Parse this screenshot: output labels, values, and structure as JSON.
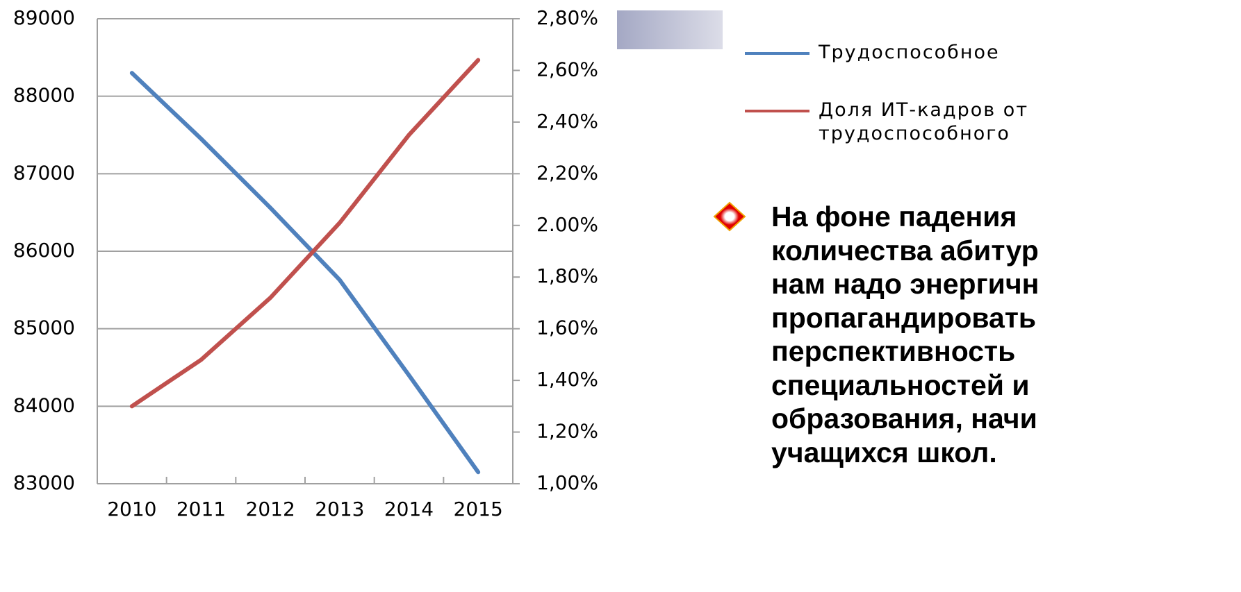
{
  "chart_data": {
    "type": "line",
    "categories": [
      "2010",
      "2011",
      "2012",
      "2013",
      "2014",
      "2015"
    ],
    "series": [
      {
        "name": "Трудоспособное",
        "color": "#4f81bd",
        "values": [
          88300,
          87450,
          86560,
          85630,
          84400,
          83150
        ]
      },
      {
        "name": "Доля ИТ-кадров от трудоспособного",
        "color": "#c0504d",
        "axis": "y2",
        "values": [
          1.3,
          1.48,
          1.72,
          2.01,
          2.35,
          2.64
        ]
      }
    ],
    "ylim": [
      83000,
      89000
    ],
    "yticks": [
      83000,
      84000,
      85000,
      86000,
      87000,
      88000,
      89000
    ],
    "y2lim": [
      1.0,
      2.8
    ],
    "y2ticks": [
      {
        "value": 1.0,
        "label": "1,00%"
      },
      {
        "value": 1.2,
        "label": "1,20%"
      },
      {
        "value": 1.4,
        "label": "1,40%"
      },
      {
        "value": 1.6,
        "label": "1,60%"
      },
      {
        "value": 1.8,
        "label": "1,80%"
      },
      {
        "value": 2.0,
        "label": "2.00%"
      },
      {
        "value": 2.2,
        "label": "2,20%"
      },
      {
        "value": 2.4,
        "label": "2,40%"
      },
      {
        "value": 2.6,
        "label": "2,60%"
      },
      {
        "value": 2.8,
        "label": "2,80%"
      }
    ],
    "grid": true,
    "legend": "right"
  },
  "bullet": {
    "lines": [
      "На фоне падения",
      "количества абитур",
      "нам надо энергичн",
      "пропагандировать",
      "перспективность",
      "специальностей и",
      "образования, начи",
      "учащихся школ."
    ]
  }
}
